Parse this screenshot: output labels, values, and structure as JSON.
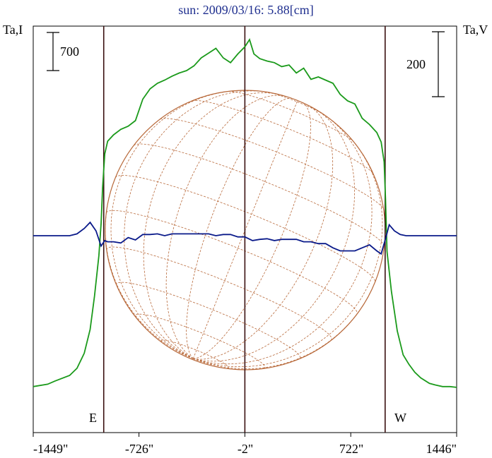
{
  "chart_data": {
    "type": "line",
    "title": "sun: 2009/03/16: 5.88[cm]",
    "ylabel_left": "Ta,I",
    "ylabel_right": "Ta,V",
    "scale_bar_left": "700",
    "scale_bar_right": "200",
    "x_tick_labels": [
      "-1449\"",
      "-726\"",
      "-2\"",
      "722\"",
      "1446\""
    ],
    "x_ticks": [
      -1449,
      -726,
      -2,
      722,
      1446
    ],
    "xlim": [
      -1449,
      1446
    ],
    "limb_markers": [
      {
        "label": "E",
        "x": -967
      },
      {
        "label": "W",
        "x": 957
      }
    ],
    "center_line_x": -2,
    "solar_disk": {
      "radius_arcsec": 957,
      "grid": "latitude/longitude",
      "color": "#b8693a"
    },
    "grid": false,
    "series": [
      {
        "name": "Ta,I",
        "color": "#1b9a1b",
        "x": [
          -1449,
          -1350,
          -1300,
          -1200,
          -1150,
          -1100,
          -1060,
          -1030,
          -1000,
          -985,
          -975,
          -960,
          -940,
          -900,
          -850,
          -800,
          -750,
          -700,
          -650,
          -600,
          -550,
          -500,
          -450,
          -400,
          -350,
          -300,
          -250,
          -200,
          -150,
          -100,
          -50,
          -2,
          30,
          60,
          100,
          150,
          200,
          250,
          300,
          350,
          400,
          450,
          500,
          550,
          600,
          650,
          700,
          750,
          800,
          850,
          900,
          930,
          950,
          960,
          970,
          1000,
          1040,
          1080,
          1120,
          1160,
          1200,
          1260,
          1300,
          1350,
          1400,
          1446
        ],
        "y": [
          -1900,
          -1870,
          -1830,
          -1760,
          -1670,
          -1480,
          -1180,
          -760,
          -250,
          150,
          600,
          1030,
          1190,
          1270,
          1340,
          1380,
          1450,
          1720,
          1850,
          1920,
          1960,
          2010,
          2050,
          2080,
          2140,
          2240,
          2300,
          2360,
          2240,
          2180,
          2290,
          2380,
          2470,
          2290,
          2230,
          2200,
          2180,
          2130,
          2150,
          2050,
          2110,
          1970,
          2000,
          1960,
          1920,
          1780,
          1700,
          1660,
          1480,
          1400,
          1300,
          1180,
          930,
          450,
          -200,
          -700,
          -1200,
          -1500,
          -1620,
          -1720,
          -1790,
          -1860,
          -1880,
          -1900,
          -1900,
          -1910
        ]
      },
      {
        "name": "Ta,V",
        "color": "#0a1a8a",
        "x": [
          -1449,
          -1300,
          -1200,
          -1150,
          -1100,
          -1060,
          -1020,
          -985,
          -960,
          -940,
          -900,
          -850,
          -800,
          -750,
          -700,
          -650,
          -600,
          -550,
          -500,
          -450,
          -400,
          -350,
          -300,
          -250,
          -200,
          -150,
          -100,
          -50,
          -2,
          50,
          100,
          150,
          200,
          250,
          300,
          350,
          400,
          450,
          500,
          550,
          600,
          650,
          700,
          750,
          800,
          850,
          900,
          930,
          960,
          985,
          1020,
          1060,
          1100,
          1200,
          1300,
          1446
        ],
        "y": [
          0,
          0,
          0,
          3,
          12,
          22,
          8,
          -17,
          -8,
          -10,
          -10,
          -12,
          -3,
          -7,
          2,
          2,
          3,
          0,
          3,
          3,
          3,
          3,
          3,
          3,
          0,
          2,
          2,
          -2,
          -2,
          -8,
          -6,
          -5,
          -8,
          -6,
          -6,
          -6,
          -10,
          -10,
          -13,
          -13,
          -20,
          -25,
          -25,
          -25,
          -20,
          -15,
          -25,
          -30,
          -5,
          18,
          8,
          2,
          0,
          0,
          0,
          0
        ]
      }
    ]
  }
}
